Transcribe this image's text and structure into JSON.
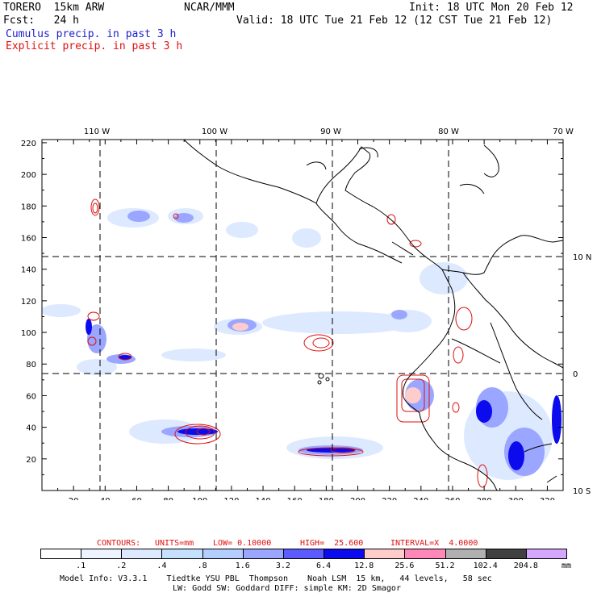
{
  "header": {
    "model": "TORERO  15km ARW",
    "org": "NCAR/MMM",
    "init": "Init: 18 UTC Mon 20 Feb 12",
    "fcst": "Fcst:   24 h",
    "valid": "Valid: 18 UTC Tue 21 Feb 12 (12 CST Tue 21 Feb 12)",
    "field1": "Cumulus precip. in past 3 h",
    "field2": "Explicit precip. in past 3 h"
  },
  "axes": {
    "x_ticks": [
      "20",
      "40",
      "60",
      "80",
      "100",
      "120",
      "140",
      "160",
      "180",
      "200",
      "220",
      "240",
      "260",
      "280",
      "300",
      "320"
    ],
    "y_ticks": [
      "20",
      "40",
      "60",
      "80",
      "100",
      "120",
      "140",
      "160",
      "180",
      "200",
      "220"
    ],
    "lon_labels": [
      "110 W",
      "100 W",
      "90 W",
      "80 W",
      "70 W"
    ],
    "lat_labels": [
      "10 N",
      "0",
      "10 S"
    ]
  },
  "contour_info": {
    "contours": "CONTOURS:",
    "units": "UNITS=mm",
    "low": "LOW= 0.10000",
    "high": "HIGH=  25.600",
    "interval": "INTERVAL=X  4.0000"
  },
  "colorbar": {
    "labels": [
      ".1",
      ".2",
      ".4",
      ".8",
      "1.6",
      "3.2",
      "6.4",
      "12.8",
      "25.6",
      "51.2",
      "102.4",
      "204.8"
    ],
    "unit": "mm",
    "colors": [
      "#ffffff",
      "#eef4ff",
      "#dde9ff",
      "#c6e0ff",
      "#b4cfff",
      "#9aa6ff",
      "#5b5bff",
      "#0b0bee",
      "#ffcccc",
      "#ff88b8",
      "#b0b0b0",
      "#404040",
      "#d6a6ff"
    ]
  },
  "footer": {
    "line1": "Model Info: V3.3.1    Tiedtke YSU PBL  Thompson    Noah LSM  15 km,   44 levels,   58 sec",
    "line2": "LW: Godd SW: Goddard DIFF: simple KM: 2D Smagor"
  }
}
